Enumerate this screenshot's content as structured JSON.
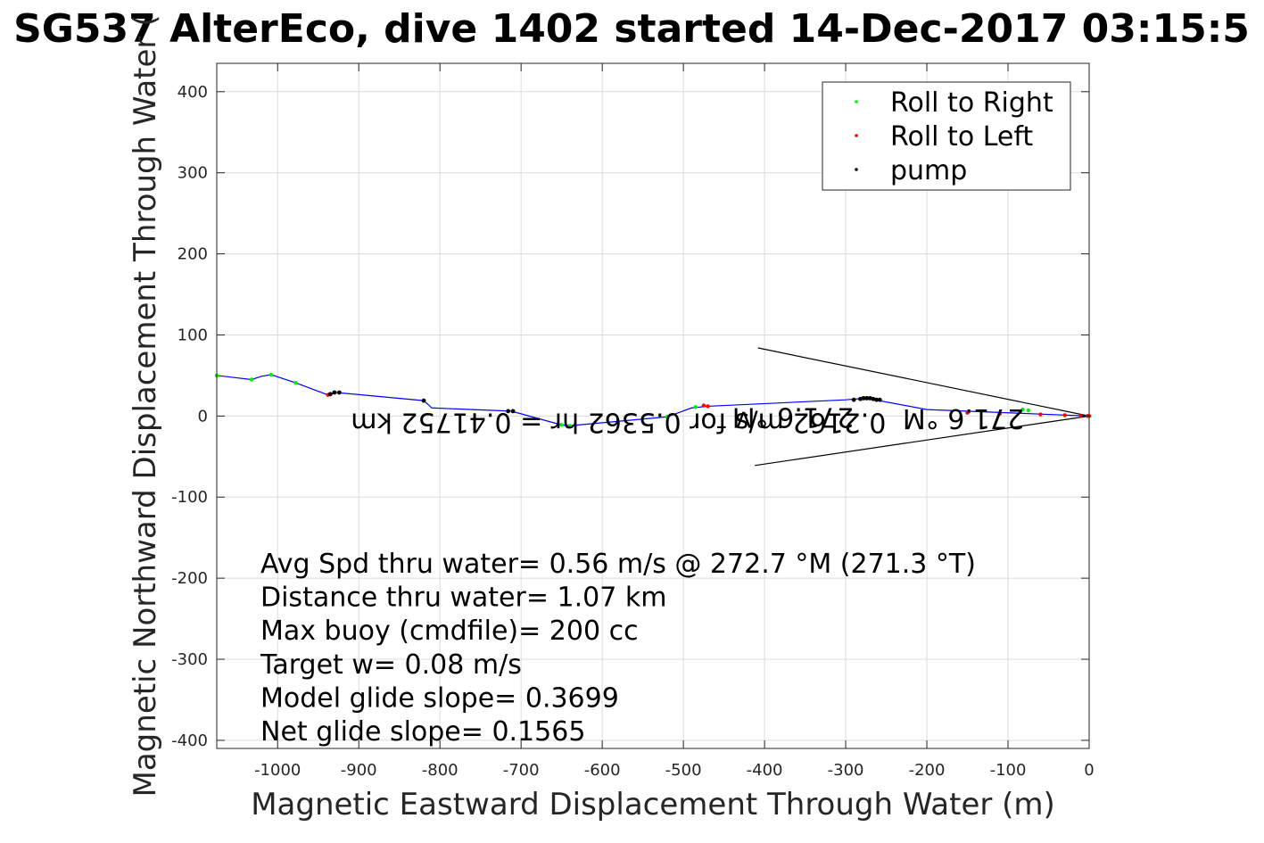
{
  "chart_data": {
    "type": "line",
    "title": "SG537 AlterEco, dive 1402 started 14-Dec-2017 03:15:5",
    "xlabel": "Magnetic Eastward Displacement Through Water (m)",
    "ylabel": "Magnetic Northward Displacement Through Water (",
    "xlim": [
      -1075,
      0
    ],
    "ylim": [
      -410,
      435
    ],
    "xticks": [
      -1000,
      -900,
      -800,
      -700,
      -600,
      -500,
      -400,
      -300,
      -200,
      -100,
      0
    ],
    "yticks": [
      400,
      300,
      200,
      100,
      0,
      -100,
      -200,
      -300,
      -400
    ],
    "grid": true,
    "legend_position": "top-right",
    "legend": [
      {
        "label": "Roll to Right",
        "color": "#00ee00"
      },
      {
        "label": "Roll to Left",
        "color": "#ff0000"
      },
      {
        "label": "pump",
        "color": "#000000"
      }
    ],
    "track": {
      "name": "",
      "color": "#0000ff",
      "x": [
        -1075,
        -1032,
        -1020,
        -1008,
        -978,
        -938,
        -928,
        -820,
        -810,
        -712,
        -650,
        -640,
        -520,
        -490,
        -470,
        -300,
        -275,
        -200,
        -100,
        -50,
        0
      ],
      "y": [
        50,
        45,
        49,
        51,
        41,
        26,
        29,
        19,
        10,
        6,
        -11,
        -12,
        -1,
        10,
        12,
        20,
        22,
        8,
        4,
        2,
        0
      ]
    },
    "roll_right_points": {
      "x": [
        -1075,
        -1032,
        -1008,
        -978,
        -650,
        -640,
        -520,
        -485,
        -82,
        -75
      ],
      "y": [
        50,
        45,
        51,
        41,
        -11,
        -12,
        -1,
        11,
        8,
        7
      ]
    },
    "roll_left_points": {
      "x": [
        -938,
        -475,
        -470,
        -150,
        -110,
        -60,
        -30,
        -10,
        -2,
        0
      ],
      "y": [
        26,
        13,
        12,
        4,
        3,
        2,
        1,
        0,
        0,
        0
      ]
    },
    "pump_points": {
      "x": [
        -935,
        -930,
        -924,
        -820,
        -716,
        -710,
        -290,
        -282,
        -278,
        -274,
        -270,
        -266,
        -262,
        -258
      ],
      "y": [
        27,
        29,
        29,
        19,
        6,
        6,
        20,
        21,
        22,
        22,
        22,
        21,
        20,
        20
      ]
    },
    "current_wedge": {
      "upper_end": [
        -408,
        84
      ],
      "lower_end": [
        -412,
        -61
      ],
      "apex": [
        0,
        0
      ]
    },
    "mirrored_labels": [
      "0.2162 m/s for 0.5362 hr = 0.41752 km",
      "271.6 °M",
      "271.6 °M"
    ],
    "annotations": [
      "Avg Spd thru water=  0.56 m/s @ 272.7 °M (271.3 °T)",
      "Distance thru water=  1.07 km",
      "Max buoy (cmdfile)= 200 cc",
      "Target w= 0.08 m/s",
      "Model glide slope= 0.3699",
      "Net glide slope= 0.1565"
    ]
  }
}
